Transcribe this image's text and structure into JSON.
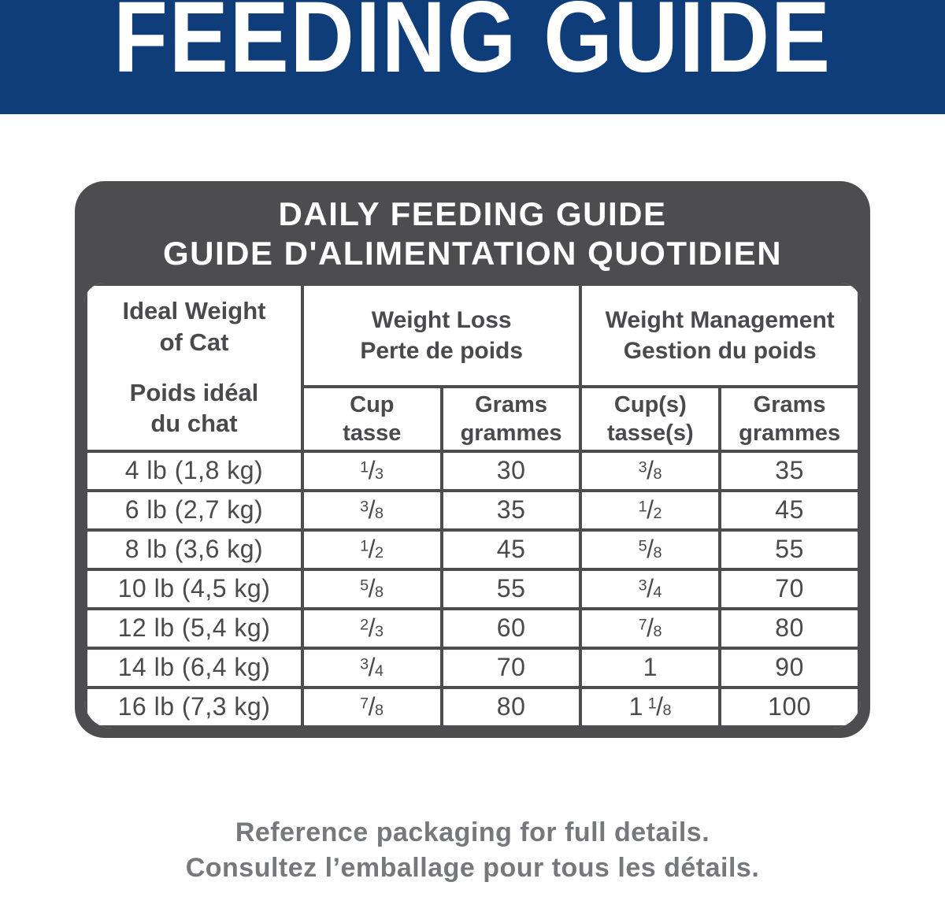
{
  "colors": {
    "banner_blue": "#0e3d7a",
    "card_gray": "#4d4d4f",
    "table_text_gray": "#4a4a4c",
    "footer_text_gray": "#77787b"
  },
  "banner": {
    "title": "FEEDING GUIDE"
  },
  "card": {
    "title_line1": "DAILY FEEDING GUIDE",
    "title_line2": "GUIDE D'ALIMENTATION QUOTIDIEN"
  },
  "table": {
    "weight_header": {
      "en_line1": "Ideal Weight",
      "en_line2": "of Cat",
      "fr_line1": "Poids idéal",
      "fr_line2": "du chat"
    },
    "groups": [
      {
        "en": "Weight Loss",
        "fr": "Perte de poids"
      },
      {
        "en": "Weight Management",
        "fr": "Gestion du poids"
      }
    ],
    "subheaders": [
      {
        "en": "Cup",
        "fr": "tasse"
      },
      {
        "en": "Grams",
        "fr": "grammes"
      },
      {
        "en": "Cup(s)",
        "fr": "tasse(s)"
      },
      {
        "en": "Grams",
        "fr": "grammes"
      }
    ],
    "rows": [
      {
        "weight": "4 lb (1,8 kg)",
        "loss_cup": "1/3",
        "loss_grams": "30",
        "mgmt_cup": "3/8",
        "mgmt_grams": "35"
      },
      {
        "weight": "6 lb (2,7 kg)",
        "loss_cup": "3/8",
        "loss_grams": "35",
        "mgmt_cup": "1/2",
        "mgmt_grams": "45"
      },
      {
        "weight": "8 lb (3,6 kg)",
        "loss_cup": "1/2",
        "loss_grams": "45",
        "mgmt_cup": "5/8",
        "mgmt_grams": "55"
      },
      {
        "weight": "10 lb (4,5 kg)",
        "loss_cup": "5/8",
        "loss_grams": "55",
        "mgmt_cup": "3/4",
        "mgmt_grams": "70"
      },
      {
        "weight": "12 lb (5,4 kg)",
        "loss_cup": "2/3",
        "loss_grams": "60",
        "mgmt_cup": "7/8",
        "mgmt_grams": "80"
      },
      {
        "weight": "14 lb (6,4 kg)",
        "loss_cup": "3/4",
        "loss_grams": "70",
        "mgmt_cup": "1",
        "mgmt_grams": "90"
      },
      {
        "weight": "16 lb (7,3 kg)",
        "loss_cup": "7/8",
        "loss_grams": "80",
        "mgmt_cup": "1 1/8",
        "mgmt_grams": "100"
      }
    ]
  },
  "footer": {
    "line1": "Reference packaging for full details.",
    "line2": "Consultez l’emballage pour tous les détails."
  }
}
